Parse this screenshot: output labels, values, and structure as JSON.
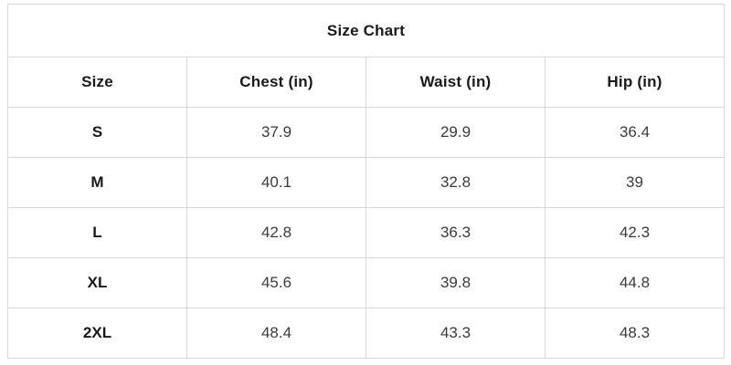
{
  "chart_data": {
    "type": "table",
    "title": "Size Chart",
    "columns": [
      "Size",
      "Chest (in)",
      "Waist (in)",
      "Hip (in)"
    ],
    "rows": [
      [
        "S",
        "37.9",
        "29.9",
        "36.4"
      ],
      [
        "M",
        "40.1",
        "32.8",
        "39"
      ],
      [
        "L",
        "42.8",
        "36.3",
        "42.3"
      ],
      [
        "XL",
        "45.6",
        "39.8",
        "44.8"
      ],
      [
        "2XL",
        "48.4",
        "43.3",
        "48.3"
      ]
    ]
  },
  "colors": {
    "background": "#ffffff",
    "border": "#d9d9d9",
    "heading_text": "#1a1a1a",
    "value_text": "#3c3c3c"
  }
}
